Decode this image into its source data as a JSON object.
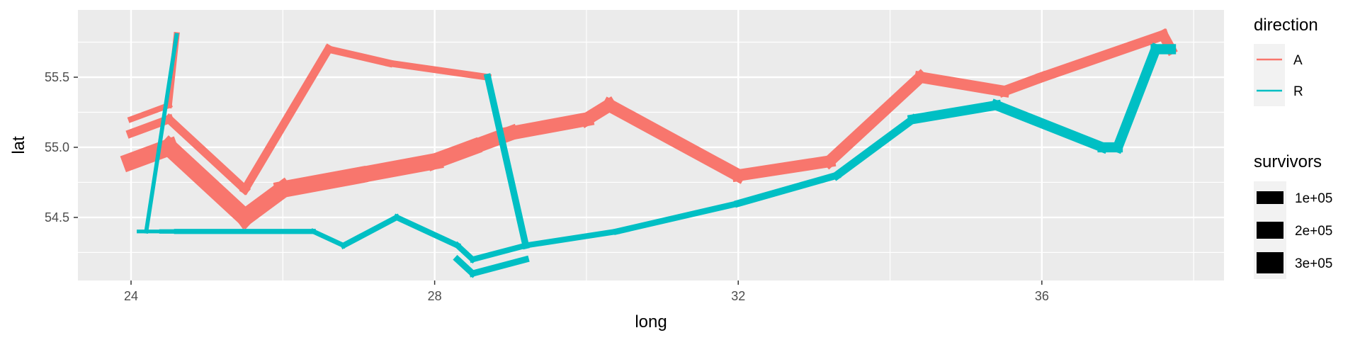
{
  "chart_data": {
    "type": "line",
    "title": "",
    "xlabel": "long",
    "ylabel": "lat",
    "xlim": [
      23.3,
      38.4
    ],
    "ylim": [
      54.05,
      55.98
    ],
    "x_ticks": [
      24,
      28,
      32,
      36
    ],
    "x_tick_labels": [
      "24",
      "28",
      "32",
      "36"
    ],
    "x_minor": [
      26,
      30,
      34,
      38
    ],
    "y_ticks": [
      54.5,
      55.0,
      55.5
    ],
    "y_tick_labels": [
      "54.5",
      "55.0",
      "55.5"
    ],
    "y_minor": [
      54.25,
      54.75,
      55.25,
      55.75
    ],
    "grid": true,
    "legend_position": "right",
    "colors": {
      "A": "#F8766D",
      "R": "#00BFC4",
      "panel": "#EBEBEB",
      "grid": "#FFFFFF"
    },
    "legend": {
      "direction": {
        "title": "direction",
        "entries": [
          "A",
          "R"
        ]
      },
      "survivors": {
        "title": "survivors",
        "entries": [
          "1e+05",
          "2e+05",
          "3e+05"
        ],
        "values": [
          100000,
          200000,
          300000
        ]
      }
    },
    "series": [
      {
        "direction": "A",
        "group": 1,
        "points": [
          {
            "x": 24.0,
            "y": 54.9,
            "survivors": 340000
          },
          {
            "x": 24.5,
            "y": 55.0,
            "survivors": 340000
          },
          {
            "x": 25.5,
            "y": 54.5,
            "survivors": 340000
          },
          {
            "x": 26.0,
            "y": 54.7,
            "survivors": 320000
          },
          {
            "x": 27.0,
            "y": 54.8,
            "survivors": 300000
          },
          {
            "x": 28.0,
            "y": 54.9,
            "survivors": 280000
          },
          {
            "x": 28.5,
            "y": 55.0,
            "survivors": 240000
          },
          {
            "x": 29.0,
            "y": 55.1,
            "survivors": 210000
          },
          {
            "x": 30.0,
            "y": 55.2,
            "survivors": 180000
          },
          {
            "x": 30.3,
            "y": 55.3,
            "survivors": 175000
          },
          {
            "x": 32.0,
            "y": 54.8,
            "survivors": 145000
          },
          {
            "x": 33.2,
            "y": 54.9,
            "survivors": 140000
          },
          {
            "x": 34.4,
            "y": 55.5,
            "survivors": 127100
          },
          {
            "x": 35.5,
            "y": 55.4,
            "survivors": 100000
          },
          {
            "x": 36.0,
            "y": 55.5,
            "survivors": 100000
          },
          {
            "x": 37.6,
            "y": 55.8,
            "survivors": 100000
          },
          {
            "x": 37.7,
            "y": 55.7,
            "survivors": 100000
          }
        ]
      },
      {
        "direction": "R",
        "group": 1,
        "points": [
          {
            "x": 37.7,
            "y": 55.7,
            "survivors": 100000
          },
          {
            "x": 37.5,
            "y": 55.7,
            "survivors": 98000
          },
          {
            "x": 37.0,
            "y": 55.0,
            "survivors": 97000
          },
          {
            "x": 36.8,
            "y": 55.0,
            "survivors": 96000
          },
          {
            "x": 35.4,
            "y": 55.3,
            "survivors": 87000
          },
          {
            "x": 34.3,
            "y": 55.2,
            "survivors": 55000
          },
          {
            "x": 33.3,
            "y": 54.8,
            "survivors": 37000
          },
          {
            "x": 32.0,
            "y": 54.6,
            "survivors": 24000
          },
          {
            "x": 30.4,
            "y": 54.4,
            "survivors": 20000
          },
          {
            "x": 29.2,
            "y": 54.3,
            "survivors": 20000
          },
          {
            "x": 28.5,
            "y": 54.2,
            "survivors": 20000
          },
          {
            "x": 28.3,
            "y": 54.3,
            "survivors": 20000
          },
          {
            "x": 27.5,
            "y": 54.5,
            "survivors": 20000
          },
          {
            "x": 26.8,
            "y": 54.3,
            "survivors": 12000
          },
          {
            "x": 26.4,
            "y": 54.4,
            "survivors": 14000
          },
          {
            "x": 24.6,
            "y": 54.4,
            "survivors": 8000
          },
          {
            "x": 24.4,
            "y": 54.4,
            "survivors": 4000
          },
          {
            "x": 24.2,
            "y": 54.4,
            "survivors": 4000
          },
          {
            "x": 24.1,
            "y": 54.4,
            "survivors": 4000
          }
        ]
      },
      {
        "direction": "A",
        "group": 2,
        "points": [
          {
            "x": 24.0,
            "y": 55.1,
            "survivors": 60000
          },
          {
            "x": 24.5,
            "y": 55.2,
            "survivors": 60000
          },
          {
            "x": 25.5,
            "y": 54.7,
            "survivors": 60000
          },
          {
            "x": 26.6,
            "y": 55.7,
            "survivors": 40000
          },
          {
            "x": 27.4,
            "y": 55.6,
            "survivors": 33000
          },
          {
            "x": 28.7,
            "y": 55.5,
            "survivors": 33000
          }
        ]
      },
      {
        "direction": "R",
        "group": 2,
        "points": [
          {
            "x": 28.7,
            "y": 55.5,
            "survivors": 33000
          },
          {
            "x": 29.2,
            "y": 54.3,
            "survivors": 30000
          }
        ]
      },
      {
        "direction": "A",
        "group": 3,
        "points": [
          {
            "x": 24.0,
            "y": 55.2,
            "survivors": 22000
          },
          {
            "x": 24.5,
            "y": 55.3,
            "survivors": 22000
          },
          {
            "x": 24.6,
            "y": 55.8,
            "survivors": 6000
          }
        ]
      },
      {
        "direction": "R",
        "group": 3,
        "points": [
          {
            "x": 24.6,
            "y": 55.8,
            "survivors": 6000
          },
          {
            "x": 24.2,
            "y": 54.4,
            "survivors": 6000
          }
        ]
      },
      {
        "direction": "R",
        "group": 2,
        "points": [
          {
            "x": 29.2,
            "y": 54.2,
            "survivors": 28000
          },
          {
            "x": 28.5,
            "y": 54.1,
            "survivors": 28000
          },
          {
            "x": 28.3,
            "y": 54.2,
            "survivors": 28000
          }
        ]
      }
    ]
  }
}
